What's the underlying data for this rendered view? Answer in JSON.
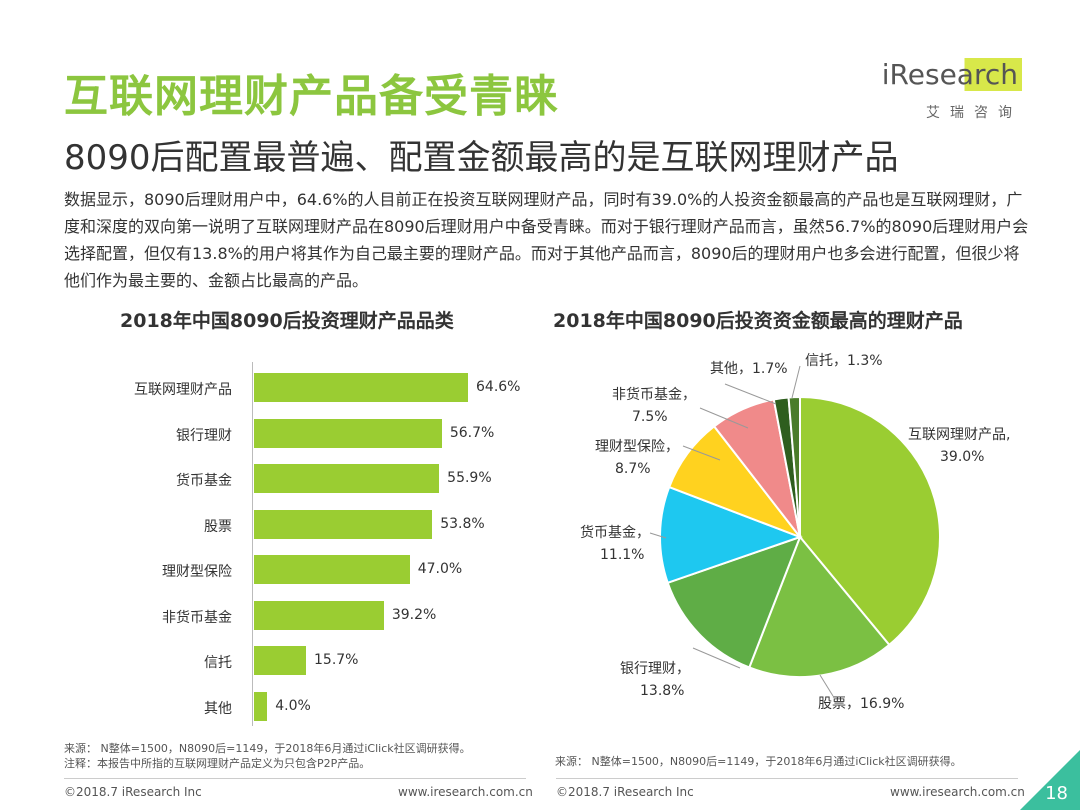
{
  "header": {
    "title": "互联网理财产品备受青睐",
    "subtitle": "8090后配置最普遍、配置金额最高的是互联网理财产品",
    "logo_brand": "iResearch",
    "logo_sub": "艾瑞咨询"
  },
  "paragraph": "数据显示，8090后理财用户中，64.6%的人目前正在投资互联网理财产品，同时有39.0%的人投资金额最高的产品也是互联网理财，广度和深度的双向第一说明了互联网理财产品在8090后理财用户中备受青睐。而对于银行理财产品而言，虽然56.7%的8090后理财用户会选择配置，但仅有13.8%的用户将其作为自己最主要的理财产品。而对于其他产品而言，8090后的理财用户也多会进行配置，但很少将他们作为最主要的、金额占比最高的产品。",
  "chart_data": [
    {
      "type": "bar",
      "orientation": "horizontal",
      "title": "2018年中国8090后投资理财产品品类",
      "categories": [
        "互联网理财产品",
        "银行理财",
        "货币基金",
        "股票",
        "理财型保险",
        "非货币基金",
        "信托",
        "其他"
      ],
      "values": [
        64.6,
        56.7,
        55.9,
        53.8,
        47.0,
        39.2,
        15.7,
        4.0
      ],
      "value_labels": [
        "64.6%",
        "56.7%",
        "55.9%",
        "53.8%",
        "47.0%",
        "39.2%",
        "15.7%",
        "4.0%"
      ],
      "color": "#9acd32"
    },
    {
      "type": "pie",
      "title": "2018年中国8090后投资资金额最高的理财产品",
      "slices": [
        {
          "name": "互联网理财产品",
          "value": 39.0,
          "label": "互联网理财产品,",
          "pct": "39.0%",
          "color": "#9acd32"
        },
        {
          "name": "股票",
          "value": 16.9,
          "label": "股票，16.9%",
          "pct": "",
          "color": "#7bc043"
        },
        {
          "name": "银行理财",
          "value": 13.8,
          "label": "银行理财，",
          "pct": "13.8%",
          "color": "#5fad46"
        },
        {
          "name": "货币基金",
          "value": 11.1,
          "label": "货币基金，",
          "pct": "11.1%",
          "color": "#1ec8f0"
        },
        {
          "name": "理财型保险",
          "value": 8.7,
          "label": "理财型保险，",
          "pct": "8.7%",
          "color": "#ffd21f"
        },
        {
          "name": "非货币基金",
          "value": 7.5,
          "label": "非货币基金，",
          "pct": "7.5%",
          "color": "#f08a8a"
        },
        {
          "name": "其他",
          "value": 1.7,
          "label": "其他，1.7%",
          "pct": "",
          "color": "#2e5e1e"
        },
        {
          "name": "信托",
          "value": 1.3,
          "label": "信托，1.3%",
          "pct": "",
          "color": "#4a7c2a"
        }
      ]
    }
  ],
  "sources": {
    "left_line1": "来源：  N整体=1500，N8090后=1149，于2018年6月通过iClick社区调研获得。",
    "left_line2": "注释：本报告中所指的互联网理财产品定义为只包含P2P产品。",
    "right_line1": "来源：  N整体=1500，N8090后=1149，于2018年6月通过iClick社区调研获得。"
  },
  "footer": {
    "left": "©2018.7 iResearch Inc",
    "mid": "www.iresearch.com.cn",
    "right_copyright": "©2018.7 iResearch Inc",
    "right_url": "www.iresearch.com.cn",
    "page_number": "18",
    "accent": "#3bbf9e"
  }
}
